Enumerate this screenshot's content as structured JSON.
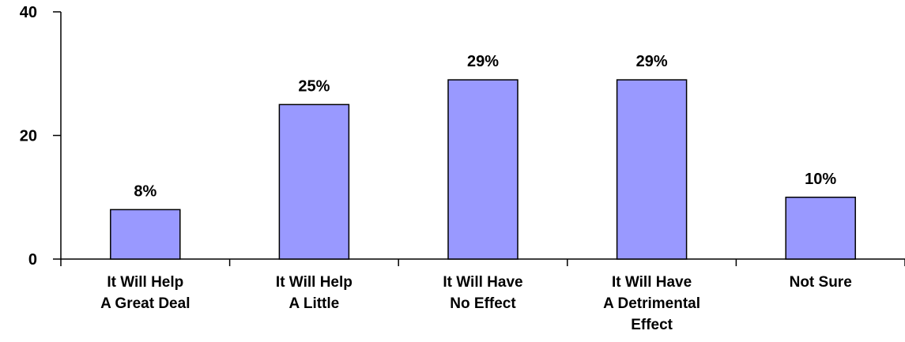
{
  "chart_data": {
    "type": "bar",
    "categories": [
      [
        "It Will Help",
        "A Great Deal"
      ],
      [
        "It Will Help",
        "A Little"
      ],
      [
        "It Will Have",
        "No Effect"
      ],
      [
        "It Will Have",
        "A Detrimental",
        "Effect"
      ],
      [
        "Not Sure"
      ]
    ],
    "values": [
      8,
      25,
      29,
      29,
      10
    ],
    "data_labels": [
      "8%",
      "25%",
      "29%",
      "29%",
      "10%"
    ],
    "yticks": [
      0,
      20,
      40
    ],
    "ylim": [
      0,
      40
    ],
    "grid": false,
    "legend": "none",
    "bar_color": "#9999ff",
    "bar_edge_color": "#000000"
  }
}
